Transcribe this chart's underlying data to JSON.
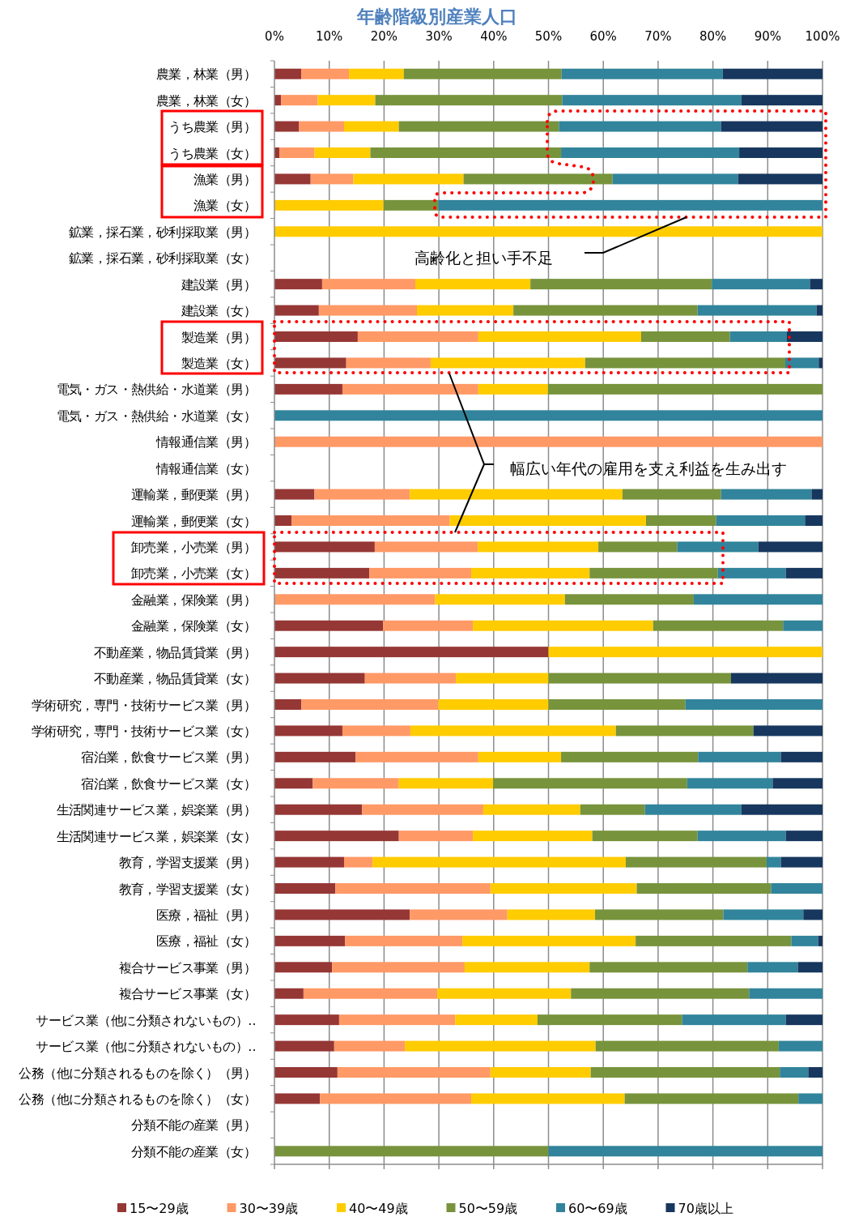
{
  "chart_data": {
    "type": "bar",
    "orientation": "horizontal",
    "stacked": true,
    "title": "年齢階級別産業人口",
    "categories": [
      "農業，林業（男）",
      "農業，林業（女）",
      "うち農業（男）",
      "うち農業（女）",
      "漁業（男）",
      "漁業（女）",
      "鉱業，採石業，砂利採取業（男）",
      "鉱業，採石業，砂利採取業（女）",
      "建設業（男）",
      "建設業（女）",
      "製造業（男）",
      "製造業（女）",
      "電気・ガス・熱供給・水道業（男）",
      "電気・ガス・熱供給・水道業（女）",
      "情報通信業（男）",
      "情報通信業（女）",
      "運輸業，郵便業（男）",
      "運輸業，郵便業（女）",
      "卸売業，小売業（男）",
      "卸売業，小売業（女）",
      "金融業，保険業（男）",
      "金融業，保険業（女）",
      "不動産業，物品賃貸業（男）",
      "不動産業，物品賃貸業（女）",
      "学術研究，専門・技術サービス業（男）",
      "学術研究，専門・技術サービス業（女）",
      "宿泊業，飲食サービス業（男）",
      "宿泊業，飲食サービス業（女）",
      "生活関連サービス業，娯楽業（男）",
      "生活関連サービス業，娯楽業（女）",
      "教育，学習支援業（男）",
      "教育，学習支援業（女）",
      "医療，福祉（男）",
      "医療，福祉（女）",
      "複合サービス事業（男）",
      "複合サービス事業（女）",
      "サービス業（他に分類されないもの）‥",
      "サービス業（他に分類されないもの）‥",
      "公務（他に分類されるものを除く）（男）",
      "公務（他に分類されるものを除く）（女）",
      "分類不能の産業（男）",
      "分類不能の産業（女）"
    ],
    "series": [
      {
        "name": "15〜29歳",
        "color": "#953735",
        "values": [
          4.9,
          1.2,
          4.5,
          0.9,
          6.6,
          0,
          0,
          null,
          8.7,
          8.1,
          15.2,
          13.1,
          12.4,
          0,
          0,
          null,
          7.3,
          3.1,
          18.3,
          17.3,
          0,
          19.8,
          50,
          16.5,
          4.9,
          12.4,
          14.8,
          7.0,
          16.0,
          22.7,
          12.7,
          11.1,
          24.7,
          12.9,
          10.5,
          5.3,
          11.8,
          10.9,
          11.5,
          8.3,
          null,
          0
        ]
      },
      {
        "name": "30〜39歳",
        "color": "#ff9966",
        "values": [
          8.7,
          6.7,
          8.2,
          6.4,
          7.8,
          0,
          0,
          null,
          17.0,
          17.9,
          22.0,
          15.4,
          24.8,
          0,
          100,
          null,
          17.4,
          28.9,
          18.8,
          18.6,
          29.3,
          16.4,
          0,
          16.6,
          25.0,
          12.4,
          22.4,
          15.7,
          22.1,
          13.5,
          5.2,
          28.3,
          17.8,
          21.4,
          24.2,
          24.4,
          21.2,
          12.9,
          27.9,
          27.6,
          null,
          0
        ]
      },
      {
        "name": "40〜49歳",
        "color": "#ffcc00",
        "values": [
          10.0,
          10.5,
          10.0,
          10.2,
          20.1,
          19.9,
          100,
          null,
          21.0,
          17.6,
          29.7,
          28.2,
          12.7,
          0,
          0,
          null,
          38.8,
          35.8,
          22.0,
          21.6,
          23.7,
          32.9,
          50,
          16.9,
          20.1,
          37.5,
          15.1,
          17.2,
          17.7,
          21.8,
          46.2,
          26.7,
          16.0,
          31.6,
          22.8,
          24.4,
          15.0,
          34.8,
          18.3,
          28.0,
          null,
          0
        ]
      },
      {
        "name": "50〜59歳",
        "color": "#77933c",
        "values": [
          28.8,
          34.1,
          29.2,
          34.8,
          27.2,
          10.0,
          0,
          null,
          33.1,
          33.6,
          16.2,
          36.5,
          50.1,
          0,
          0,
          null,
          18.0,
          12.8,
          14.4,
          23.4,
          23.5,
          23.7,
          0,
          33.3,
          25.0,
          25.1,
          25.0,
          35.4,
          11.8,
          19.2,
          25.7,
          24.5,
          23.4,
          28.4,
          28.8,
          32.5,
          26.4,
          33.4,
          34.5,
          31.7,
          null,
          50
        ]
      },
      {
        "name": "60〜69歳",
        "color": "#31849b",
        "values": [
          29.4,
          32.7,
          29.6,
          32.5,
          22.9,
          70.1,
          0,
          null,
          17.9,
          21.7,
          10.4,
          6.1,
          0,
          100,
          0,
          null,
          16.5,
          16.2,
          14.8,
          12.4,
          23.5,
          7.2,
          0,
          0,
          25.0,
          0,
          15.1,
          15.6,
          17.6,
          16.1,
          2.6,
          9.4,
          14.6,
          4.9,
          9.2,
          13.4,
          18.9,
          8.0,
          5.2,
          4.4,
          null,
          50
        ]
      },
      {
        "name": "70歳以上",
        "color": "#17375e",
        "values": [
          18.2,
          14.8,
          18.5,
          15.2,
          15.4,
          0,
          0,
          null,
          2.3,
          1.1,
          6.5,
          0.7,
          0,
          0,
          0,
          null,
          2.0,
          3.2,
          11.7,
          6.7,
          0,
          0,
          0,
          16.7,
          0,
          12.6,
          7.6,
          9.1,
          14.8,
          6.7,
          7.6,
          0,
          3.5,
          0.8,
          4.5,
          0,
          6.7,
          0,
          2.6,
          0,
          null,
          0
        ]
      }
    ],
    "xlim": [
      0,
      100
    ],
    "xticks": [
      {
        "value": 0,
        "label": "0%"
      },
      {
        "value": 10,
        "label": "10%"
      },
      {
        "value": 20,
        "label": "20%"
      },
      {
        "value": 30,
        "label": "30%"
      },
      {
        "value": 40,
        "label": "40%"
      },
      {
        "value": 50,
        "label": "50%"
      },
      {
        "value": 60,
        "label": "60%"
      },
      {
        "value": 70,
        "label": "70%"
      },
      {
        "value": 80,
        "label": "80%"
      },
      {
        "value": 90,
        "label": "90%"
      },
      {
        "value": 100,
        "label": "100%"
      }
    ],
    "grid": "x",
    "legend": "bottom",
    "annotations": [
      "高齢化と担い手不足",
      "幅広い年代の雇用を支え利益を生み出す"
    ]
  }
}
